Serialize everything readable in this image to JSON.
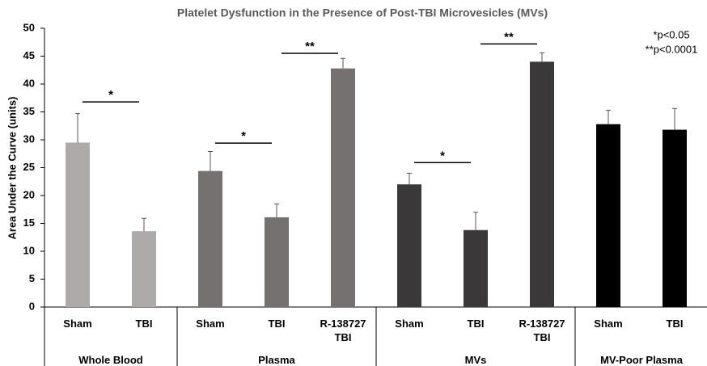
{
  "chart_data": {
    "type": "bar",
    "title": "Platelet Dysfunction in the Presence of Post-TBI Microvesicles (MVs)",
    "y_label": "Area Under the Curve (units)",
    "ylim": [
      0,
      50
    ],
    "yticks": [
      0,
      5,
      10,
      15,
      20,
      25,
      30,
      35,
      40,
      45,
      50
    ],
    "grid": false,
    "groups": [
      {
        "name": "Whole Blood",
        "color": "#aeaaaa",
        "categories": [
          "Sham",
          "TBI"
        ],
        "values": [
          29.5,
          13.6
        ],
        "errors": [
          5.2,
          2.3
        ]
      },
      {
        "name": "Plasma",
        "color": "#767171",
        "categories": [
          "Sham",
          "TBI",
          "R-138727 TBI"
        ],
        "values": [
          24.4,
          16.1,
          42.8
        ],
        "errors": [
          3.5,
          2.4,
          1.8
        ]
      },
      {
        "name": "MVs",
        "color": "#3a3838",
        "categories": [
          "Sham",
          "TBI",
          "R-138727 TBI"
        ],
        "values": [
          22.0,
          13.8,
          44.0
        ],
        "errors": [
          2.0,
          3.2,
          1.6
        ]
      },
      {
        "name": "MV-Poor Plasma",
        "color": "#000000",
        "categories": [
          "Sham",
          "TBI"
        ],
        "values": [
          32.8,
          31.8
        ],
        "errors": [
          2.5,
          3.8
        ]
      }
    ],
    "annotations": [
      {
        "text": "*",
        "y": 36.8
      },
      {
        "text": "*",
        "y": 29.4
      },
      {
        "text": "**",
        "y": 45.5
      },
      {
        "text": "*",
        "y": 25.9
      },
      {
        "text": "**",
        "y": 47.2
      }
    ],
    "notes": [
      "*p<0.05",
      "**p<0.0001"
    ]
  }
}
